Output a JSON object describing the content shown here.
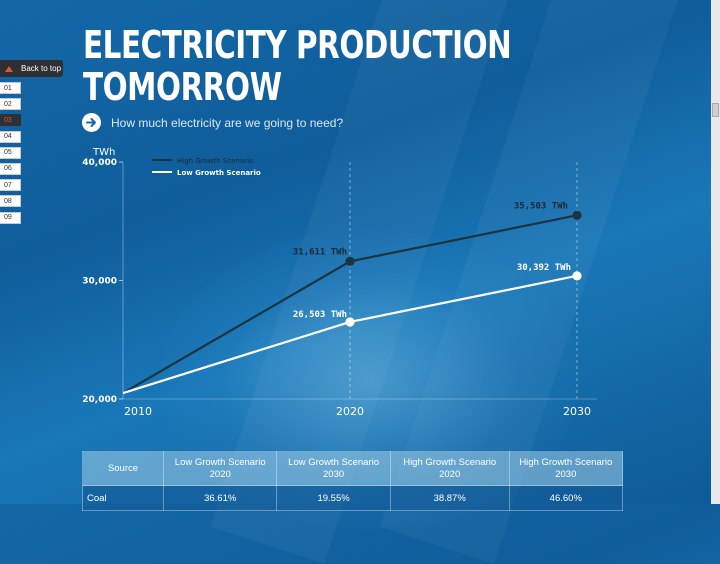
{
  "page": {
    "title_line1": "ELECTRICITY PRODUCTION",
    "title_line2": "TOMORROW",
    "subtitle": "How much electricity are we going to need?",
    "back_to_top": "Back to top"
  },
  "nav": {
    "items": [
      "01",
      "02",
      "03",
      "04",
      "05",
      "06",
      "07",
      "08",
      "09"
    ],
    "active": "03"
  },
  "colors": {
    "high_line": "#1b3440",
    "low_line": "#ffffff",
    "accent": "#e8561b"
  },
  "chart_data": {
    "type": "line",
    "ylabel": "TWh",
    "x": [
      2010,
      2020,
      2030
    ],
    "ylim": [
      20000,
      40000
    ],
    "yticks": [
      "20,000",
      "30,000",
      "40,000"
    ],
    "xticks": [
      "2010",
      "2020",
      "2030"
    ],
    "legend_placement": "top-left",
    "series": [
      {
        "name": "High Growth Scenario",
        "values": [
          20500,
          31611,
          35503
        ],
        "labels": [
          "",
          "31,611 TWh",
          "35,503 TWh"
        ]
      },
      {
        "name": "Low Growth Scenario",
        "values": [
          20500,
          26503,
          30392
        ],
        "labels": [
          "",
          "26,503 TWh",
          "30,392 TWh"
        ]
      }
    ]
  },
  "table": {
    "headers": [
      [
        "Source"
      ],
      [
        "Low Growth Scenario",
        "2020"
      ],
      [
        "Low Growth Scenario",
        "2030"
      ],
      [
        "High Growth Scenario",
        "2020"
      ],
      [
        "High Growth Scenario",
        "2030"
      ]
    ],
    "rows": [
      [
        "Coal",
        "36.61%",
        "19.55%",
        "38.87%",
        "46.60%"
      ]
    ]
  }
}
